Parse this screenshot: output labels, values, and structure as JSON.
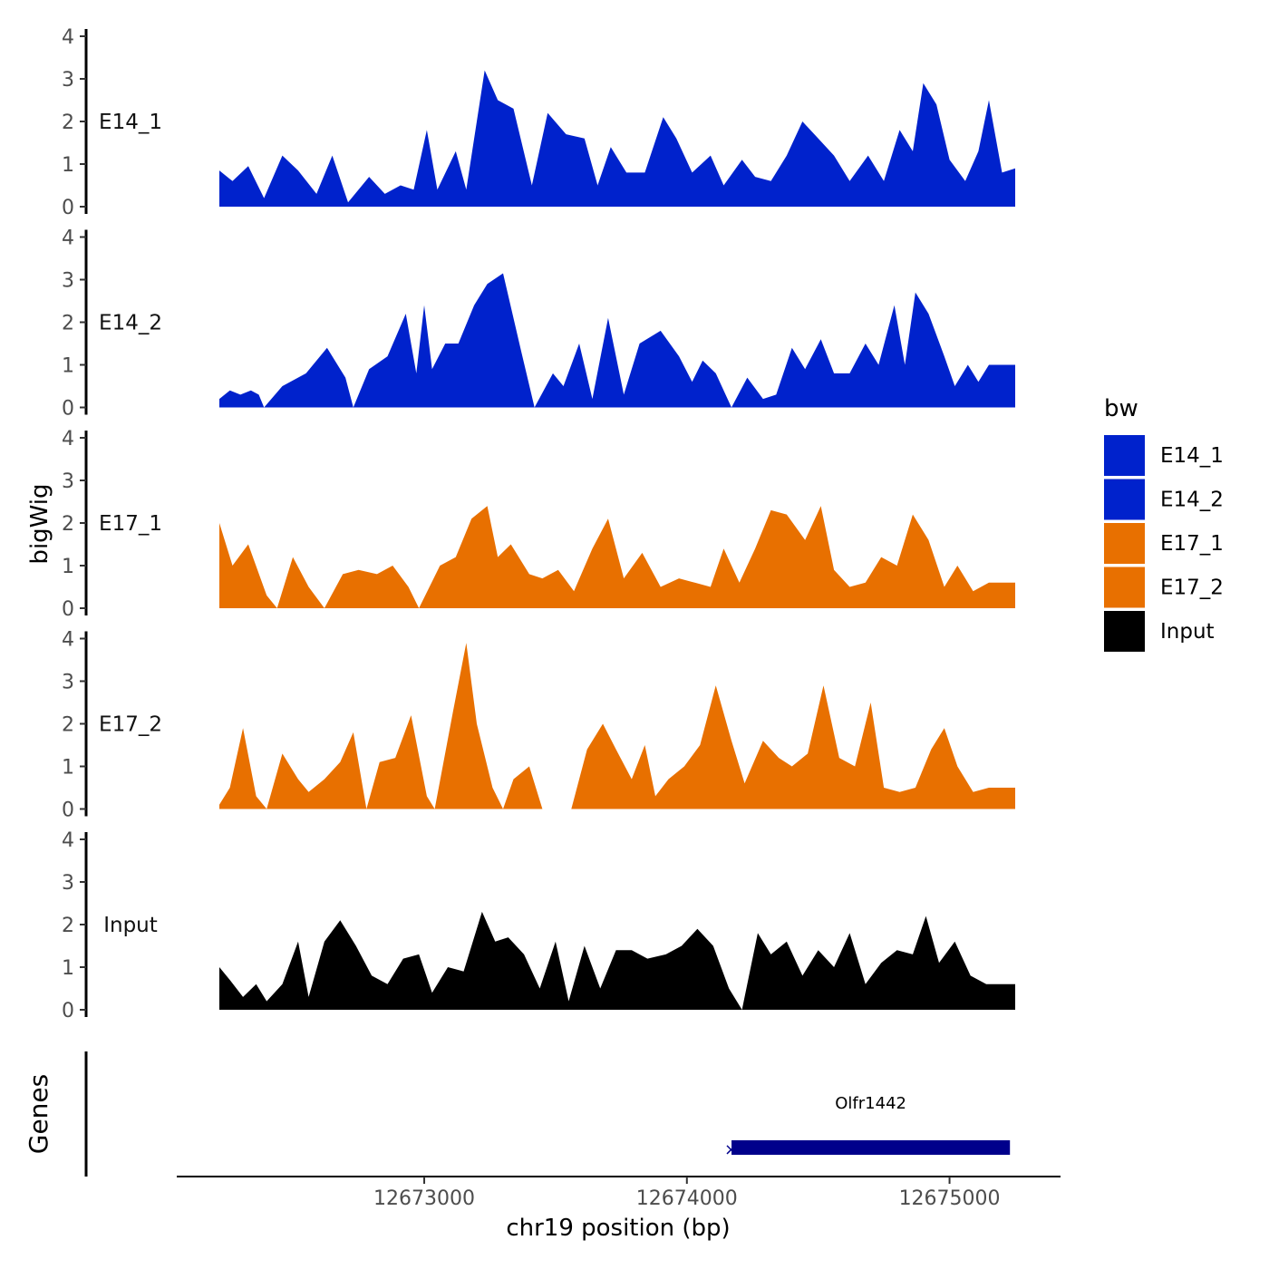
{
  "chart_data": {
    "type": "area",
    "chromosome": "chr19",
    "ylabel": "bigWig",
    "xlabel": "chr19 position (bp)",
    "genes_label": "Genes",
    "legend_title": "bw",
    "legend_position": "right",
    "x_range": [
      12672220,
      12675250
    ],
    "x_ticks": [
      12673000,
      12674000,
      12675000
    ],
    "x_tick_labels": [
      "12673000",
      "12674000",
      "12675000"
    ],
    "ylim": [
      0,
      4
    ],
    "y_ticks": [
      0,
      1,
      2,
      3,
      4
    ],
    "y_tick_labels": [
      "0",
      "1",
      "2",
      "3",
      "4"
    ],
    "colors": {
      "E14_1": "#0022cc",
      "E14_2": "#0022cc",
      "E17_1": "#e87000",
      "E17_2": "#e87000",
      "Input": "#000000",
      "gene": "#00008b"
    },
    "series": [
      {
        "name": "E14_1",
        "color": "#0022cc",
        "points": [
          [
            12672220,
            0.85
          ],
          [
            12672270,
            0.6
          ],
          [
            12672330,
            0.95
          ],
          [
            12672390,
            0.2
          ],
          [
            12672460,
            1.2
          ],
          [
            12672520,
            0.85
          ],
          [
            12672590,
            0.3
          ],
          [
            12672650,
            1.2
          ],
          [
            12672710,
            0.1
          ],
          [
            12672790,
            0.7
          ],
          [
            12672850,
            0.3
          ],
          [
            12672910,
            0.5
          ],
          [
            12672960,
            0.4
          ],
          [
            12673010,
            1.8
          ],
          [
            12673050,
            0.4
          ],
          [
            12673120,
            1.3
          ],
          [
            12673160,
            0.4
          ],
          [
            12673230,
            3.2
          ],
          [
            12673280,
            2.5
          ],
          [
            12673340,
            2.3
          ],
          [
            12673410,
            0.5
          ],
          [
            12673470,
            2.2
          ],
          [
            12673540,
            1.7
          ],
          [
            12673610,
            1.6
          ],
          [
            12673660,
            0.5
          ],
          [
            12673710,
            1.4
          ],
          [
            12673770,
            0.8
          ],
          [
            12673840,
            0.8
          ],
          [
            12673910,
            2.1
          ],
          [
            12673960,
            1.6
          ],
          [
            12674020,
            0.8
          ],
          [
            12674090,
            1.2
          ],
          [
            12674140,
            0.5
          ],
          [
            12674210,
            1.1
          ],
          [
            12674260,
            0.7
          ],
          [
            12674320,
            0.6
          ],
          [
            12674380,
            1.2
          ],
          [
            12674440,
            2.0
          ],
          [
            12674500,
            1.6
          ],
          [
            12674560,
            1.2
          ],
          [
            12674620,
            0.6
          ],
          [
            12674690,
            1.2
          ],
          [
            12674750,
            0.6
          ],
          [
            12674810,
            1.8
          ],
          [
            12674860,
            1.3
          ],
          [
            12674900,
            2.9
          ],
          [
            12674950,
            2.4
          ],
          [
            12675000,
            1.1
          ],
          [
            12675060,
            0.6
          ],
          [
            12675110,
            1.3
          ],
          [
            12675150,
            2.5
          ],
          [
            12675200,
            0.8
          ],
          [
            12675250,
            0.9
          ]
        ]
      },
      {
        "name": "E14_2",
        "color": "#0022cc",
        "points": [
          [
            12672220,
            0.2
          ],
          [
            12672260,
            0.4
          ],
          [
            12672300,
            0.3
          ],
          [
            12672340,
            0.4
          ],
          [
            12672370,
            0.3
          ],
          [
            12672390,
            0.0
          ],
          [
            12672460,
            0.5
          ],
          [
            12672550,
            0.8
          ],
          [
            12672630,
            1.4
          ],
          [
            12672700,
            0.7
          ],
          [
            12672730,
            0.0
          ],
          [
            12672790,
            0.9
          ],
          [
            12672860,
            1.2
          ],
          [
            12672930,
            2.2
          ],
          [
            12672970,
            0.8
          ],
          [
            12673000,
            2.4
          ],
          [
            12673030,
            0.9
          ],
          [
            12673080,
            1.5
          ],
          [
            12673130,
            1.5
          ],
          [
            12673190,
            2.4
          ],
          [
            12673240,
            2.9
          ],
          [
            12673300,
            3.15
          ],
          [
            12673370,
            1.3
          ],
          [
            12673420,
            0.0
          ],
          [
            12673490,
            0.8
          ],
          [
            12673530,
            0.5
          ],
          [
            12673590,
            1.5
          ],
          [
            12673640,
            0.2
          ],
          [
            12673700,
            2.1
          ],
          [
            12673760,
            0.3
          ],
          [
            12673820,
            1.5
          ],
          [
            12673900,
            1.8
          ],
          [
            12673970,
            1.2
          ],
          [
            12674020,
            0.6
          ],
          [
            12674060,
            1.1
          ],
          [
            12674110,
            0.8
          ],
          [
            12674170,
            0.0
          ],
          [
            12674230,
            0.7
          ],
          [
            12674290,
            0.2
          ],
          [
            12674340,
            0.3
          ],
          [
            12674400,
            1.4
          ],
          [
            12674450,
            0.9
          ],
          [
            12674510,
            1.6
          ],
          [
            12674560,
            0.8
          ],
          [
            12674620,
            0.8
          ],
          [
            12674680,
            1.5
          ],
          [
            12674730,
            1.0
          ],
          [
            12674790,
            2.4
          ],
          [
            12674830,
            1.0
          ],
          [
            12674870,
            2.7
          ],
          [
            12674920,
            2.2
          ],
          [
            12674980,
            1.2
          ],
          [
            12675020,
            0.5
          ],
          [
            12675070,
            1.0
          ],
          [
            12675110,
            0.6
          ],
          [
            12675150,
            1.0
          ],
          [
            12675250,
            1.0
          ]
        ]
      },
      {
        "name": "E17_1",
        "color": "#e87000",
        "points": [
          [
            12672220,
            2.0
          ],
          [
            12672270,
            1.0
          ],
          [
            12672330,
            1.5
          ],
          [
            12672400,
            0.3
          ],
          [
            12672440,
            0.0
          ],
          [
            12672500,
            1.2
          ],
          [
            12672560,
            0.5
          ],
          [
            12672620,
            0.0
          ],
          [
            12672690,
            0.8
          ],
          [
            12672750,
            0.9
          ],
          [
            12672820,
            0.8
          ],
          [
            12672880,
            1.0
          ],
          [
            12672940,
            0.5
          ],
          [
            12672980,
            0.0
          ],
          [
            12673060,
            1.0
          ],
          [
            12673120,
            1.2
          ],
          [
            12673180,
            2.1
          ],
          [
            12673240,
            2.4
          ],
          [
            12673280,
            1.2
          ],
          [
            12673330,
            1.5
          ],
          [
            12673400,
            0.8
          ],
          [
            12673450,
            0.7
          ],
          [
            12673510,
            0.9
          ],
          [
            12673570,
            0.4
          ],
          [
            12673640,
            1.4
          ],
          [
            12673700,
            2.1
          ],
          [
            12673760,
            0.7
          ],
          [
            12673830,
            1.3
          ],
          [
            12673900,
            0.5
          ],
          [
            12673970,
            0.7
          ],
          [
            12674030,
            0.6
          ],
          [
            12674090,
            0.5
          ],
          [
            12674140,
            1.4
          ],
          [
            12674200,
            0.6
          ],
          [
            12674260,
            1.4
          ],
          [
            12674320,
            2.3
          ],
          [
            12674380,
            2.2
          ],
          [
            12674450,
            1.6
          ],
          [
            12674510,
            2.4
          ],
          [
            12674560,
            0.9
          ],
          [
            12674620,
            0.5
          ],
          [
            12674680,
            0.6
          ],
          [
            12674740,
            1.2
          ],
          [
            12674800,
            1.0
          ],
          [
            12674860,
            2.2
          ],
          [
            12674920,
            1.6
          ],
          [
            12674980,
            0.5
          ],
          [
            12675030,
            1.0
          ],
          [
            12675090,
            0.4
          ],
          [
            12675150,
            0.6
          ],
          [
            12675250,
            0.6
          ]
        ]
      },
      {
        "name": "E17_2",
        "color": "#e87000",
        "points": [
          [
            12672220,
            0.1
          ],
          [
            12672260,
            0.5
          ],
          [
            12672310,
            1.9
          ],
          [
            12672360,
            0.3
          ],
          [
            12672400,
            0.0
          ],
          [
            12672460,
            1.3
          ],
          [
            12672520,
            0.7
          ],
          [
            12672560,
            0.4
          ],
          [
            12672620,
            0.7
          ],
          [
            12672680,
            1.1
          ],
          [
            12672730,
            1.8
          ],
          [
            12672780,
            0.0
          ],
          [
            12672830,
            1.1
          ],
          [
            12672890,
            1.2
          ],
          [
            12672950,
            2.2
          ],
          [
            12673010,
            0.3
          ],
          [
            12673040,
            0.0
          ],
          [
            12673110,
            2.3
          ],
          [
            12673160,
            3.9
          ],
          [
            12673200,
            2.0
          ],
          [
            12673260,
            0.5
          ],
          [
            12673300,
            0.0
          ],
          [
            12673340,
            0.7
          ],
          [
            12673400,
            1.0
          ],
          [
            12673450,
            0.0
          ],
          [
            12673560,
            0.0
          ],
          [
            12673620,
            1.4
          ],
          [
            12673680,
            2.0
          ],
          [
            12673730,
            1.4
          ],
          [
            12673790,
            0.7
          ],
          [
            12673840,
            1.5
          ],
          [
            12673880,
            0.3
          ],
          [
            12673930,
            0.7
          ],
          [
            12673990,
            1.0
          ],
          [
            12674050,
            1.5
          ],
          [
            12674110,
            2.9
          ],
          [
            12674170,
            1.6
          ],
          [
            12674220,
            0.6
          ],
          [
            12674290,
            1.6
          ],
          [
            12674350,
            1.2
          ],
          [
            12674400,
            1.0
          ],
          [
            12674460,
            1.3
          ],
          [
            12674520,
            2.9
          ],
          [
            12674580,
            1.2
          ],
          [
            12674640,
            1.0
          ],
          [
            12674700,
            2.5
          ],
          [
            12674750,
            0.5
          ],
          [
            12674810,
            0.4
          ],
          [
            12674870,
            0.5
          ],
          [
            12674930,
            1.4
          ],
          [
            12674980,
            1.9
          ],
          [
            12675030,
            1.0
          ],
          [
            12675090,
            0.4
          ],
          [
            12675150,
            0.5
          ],
          [
            12675250,
            0.5
          ]
        ]
      },
      {
        "name": "Input",
        "color": "#000000",
        "points": [
          [
            12672220,
            1.0
          ],
          [
            12672260,
            0.7
          ],
          [
            12672310,
            0.3
          ],
          [
            12672360,
            0.6
          ],
          [
            12672400,
            0.2
          ],
          [
            12672460,
            0.6
          ],
          [
            12672520,
            1.6
          ],
          [
            12672560,
            0.3
          ],
          [
            12672620,
            1.6
          ],
          [
            12672680,
            2.1
          ],
          [
            12672740,
            1.5
          ],
          [
            12672800,
            0.8
          ],
          [
            12672860,
            0.6
          ],
          [
            12672920,
            1.2
          ],
          [
            12672980,
            1.3
          ],
          [
            12673030,
            0.4
          ],
          [
            12673090,
            1.0
          ],
          [
            12673150,
            0.9
          ],
          [
            12673220,
            2.3
          ],
          [
            12673270,
            1.6
          ],
          [
            12673320,
            1.7
          ],
          [
            12673380,
            1.3
          ],
          [
            12673440,
            0.5
          ],
          [
            12673500,
            1.6
          ],
          [
            12673550,
            0.2
          ],
          [
            12673610,
            1.5
          ],
          [
            12673670,
            0.5
          ],
          [
            12673730,
            1.4
          ],
          [
            12673790,
            1.4
          ],
          [
            12673850,
            1.2
          ],
          [
            12673920,
            1.3
          ],
          [
            12673980,
            1.5
          ],
          [
            12674040,
            1.9
          ],
          [
            12674100,
            1.5
          ],
          [
            12674160,
            0.5
          ],
          [
            12674210,
            0.0
          ],
          [
            12674270,
            1.8
          ],
          [
            12674320,
            1.3
          ],
          [
            12674380,
            1.6
          ],
          [
            12674440,
            0.8
          ],
          [
            12674500,
            1.4
          ],
          [
            12674560,
            1.0
          ],
          [
            12674620,
            1.8
          ],
          [
            12674680,
            0.6
          ],
          [
            12674740,
            1.1
          ],
          [
            12674800,
            1.4
          ],
          [
            12674860,
            1.3
          ],
          [
            12674910,
            2.2
          ],
          [
            12674960,
            1.1
          ],
          [
            12675020,
            1.6
          ],
          [
            12675080,
            0.8
          ],
          [
            12675140,
            0.6
          ],
          [
            12675250,
            0.6
          ]
        ]
      }
    ],
    "genes": [
      {
        "name": "Olfr1442",
        "start": 12674170,
        "end": 12675230
      }
    ]
  }
}
